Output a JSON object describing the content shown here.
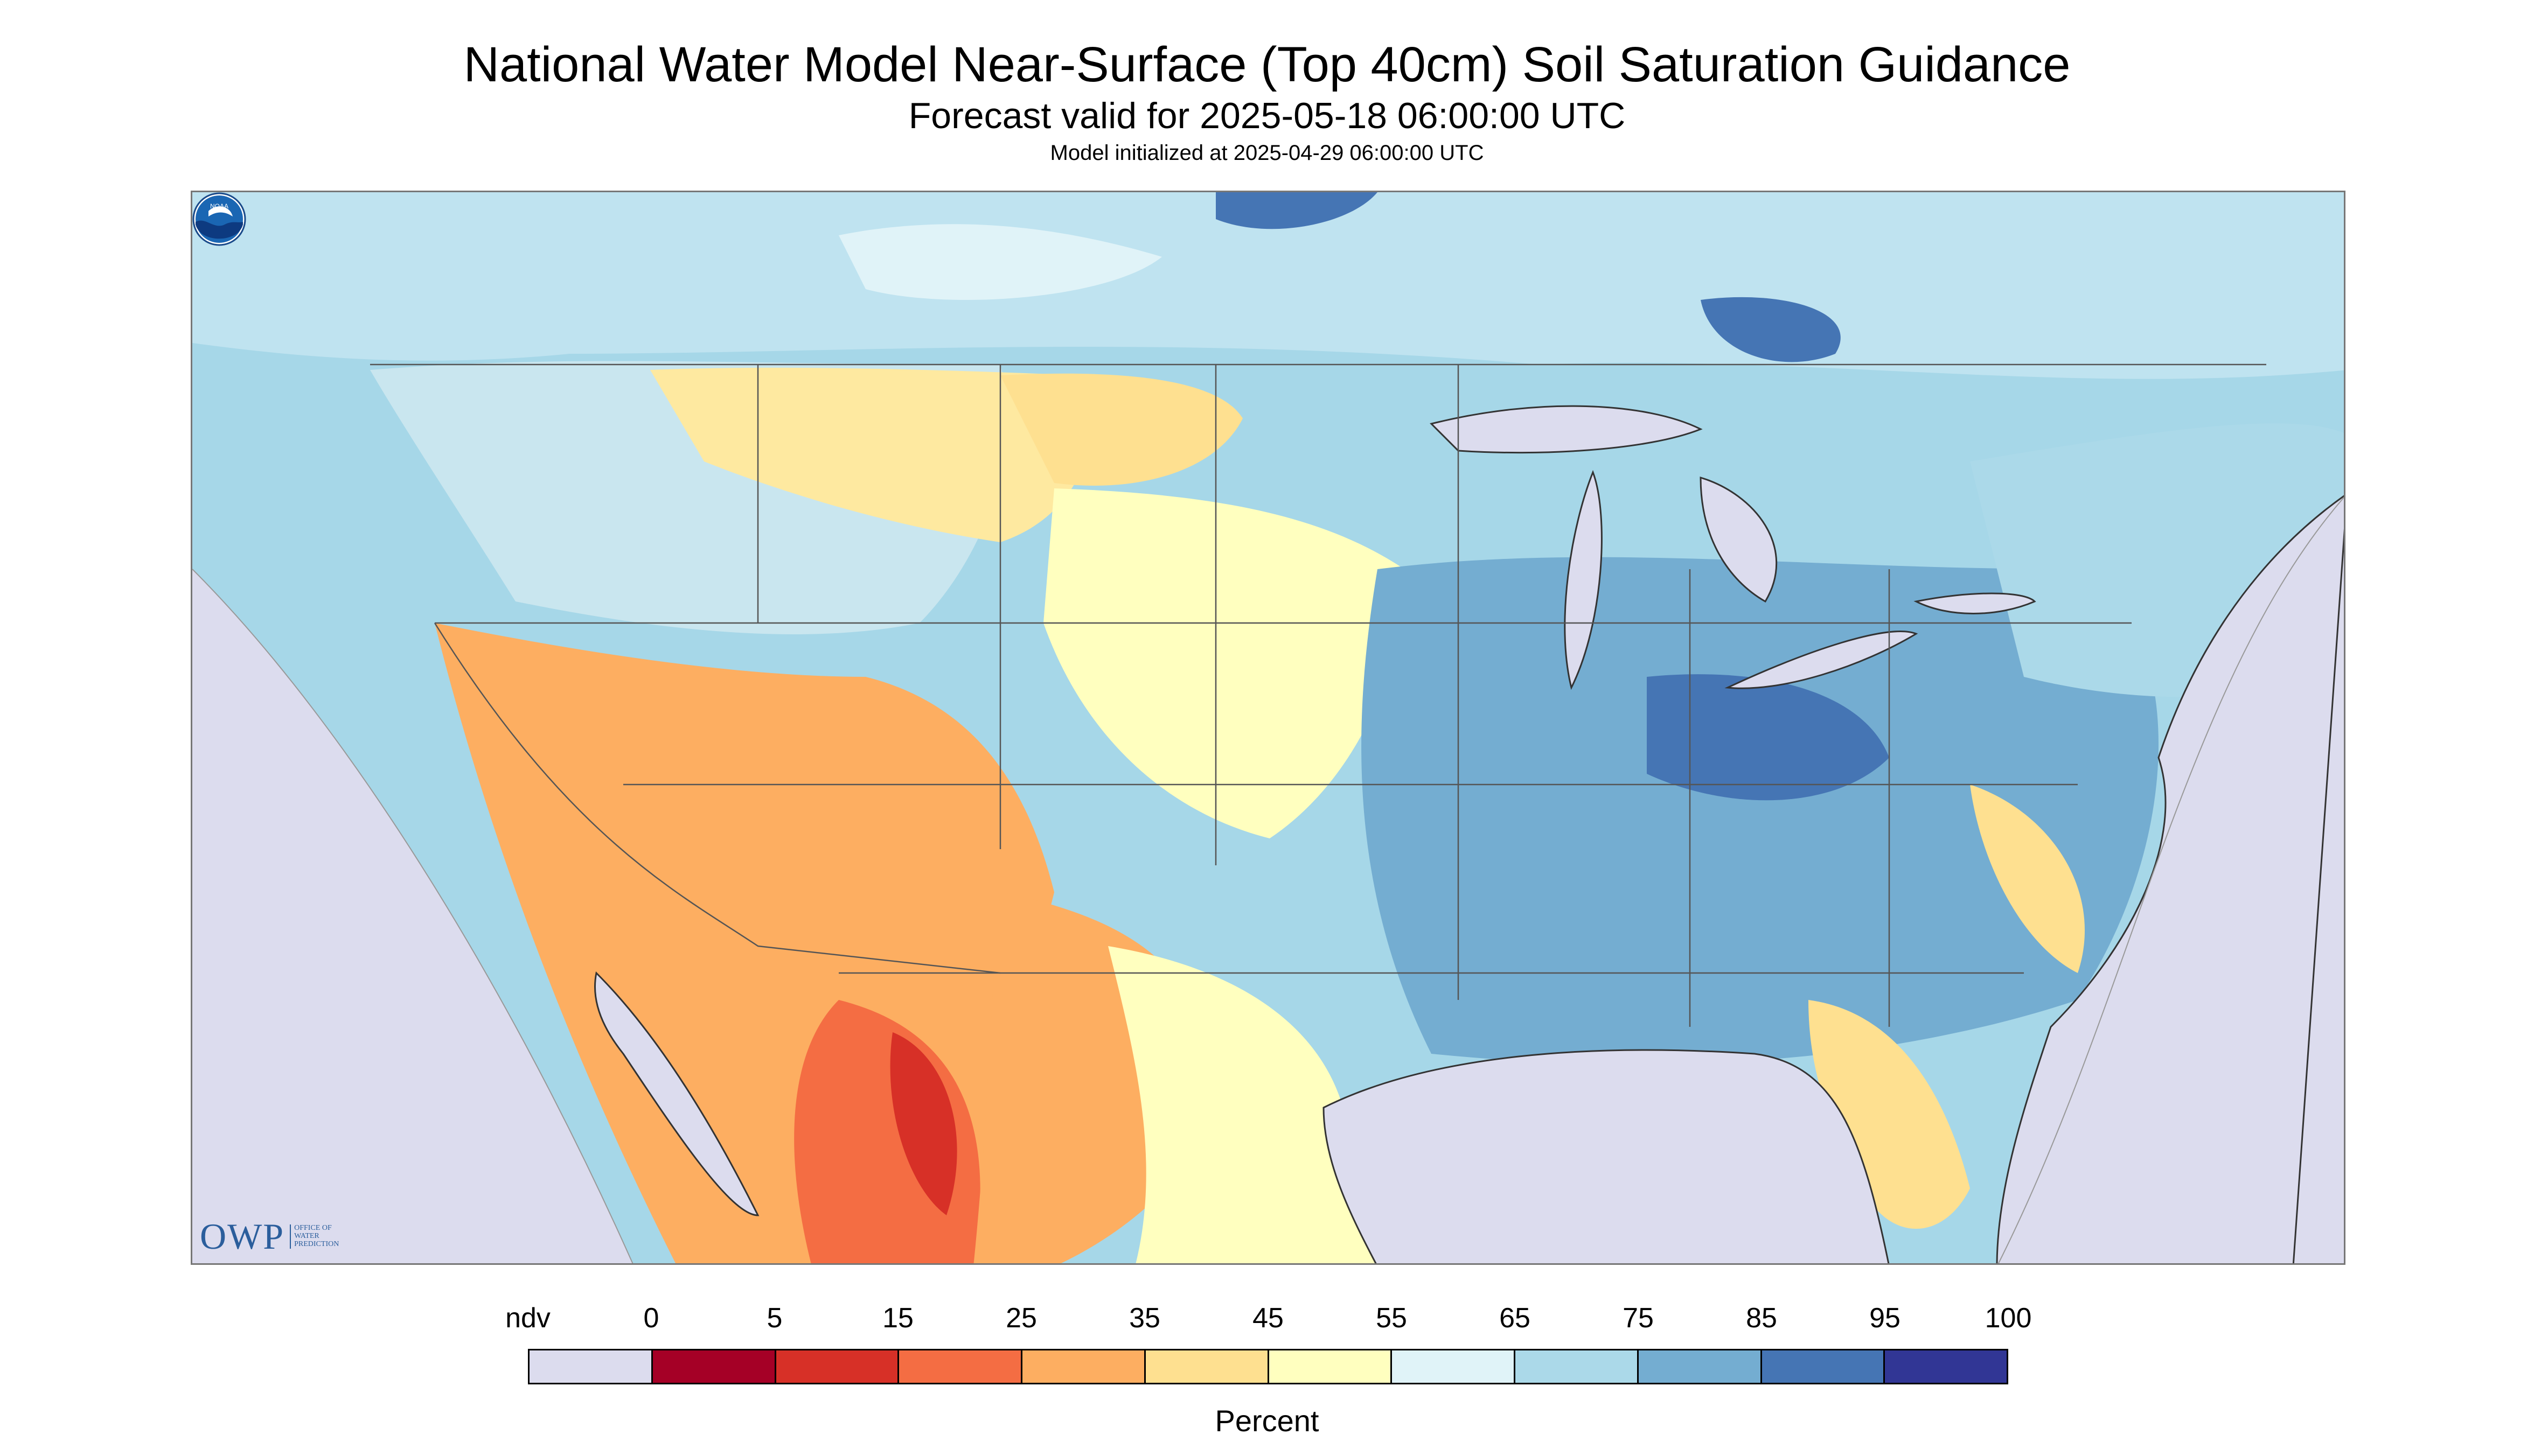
{
  "header": {
    "title": "National Water Model Near-Surface (Top 40cm) Soil Saturation Guidance",
    "subtitle": "Forecast valid for 2025-05-18 06:00:00 UTC",
    "init": "Model initialized at 2025-04-29 06:00:00 UTC"
  },
  "map": {
    "nodata_color": "#dcdcee",
    "water_color": "#dcdcee",
    "dominant_colors": [
      "#a6d7e8",
      "#74add1",
      "#e0f3f8",
      "#fee090",
      "#fdae61",
      "#f46d43"
    ],
    "logos": {
      "owp_main": "OWP",
      "owp_sub_1": "OFFICE OF",
      "owp_sub_2": "WATER",
      "owp_sub_3": "PREDICTION",
      "noaa": "NOAA"
    }
  },
  "legend": {
    "title": "Percent",
    "labels": [
      "ndv",
      "0",
      "5",
      "15",
      "25",
      "35",
      "45",
      "55",
      "65",
      "75",
      "85",
      "95",
      "100"
    ],
    "colors": [
      "#dcdcee",
      "#a50026",
      "#d73027",
      "#f46d43",
      "#fdae61",
      "#fee090",
      "#ffffbf",
      "#e0f3f8",
      "#abd9e9",
      "#74add1",
      "#4575b4",
      "#313695"
    ]
  }
}
